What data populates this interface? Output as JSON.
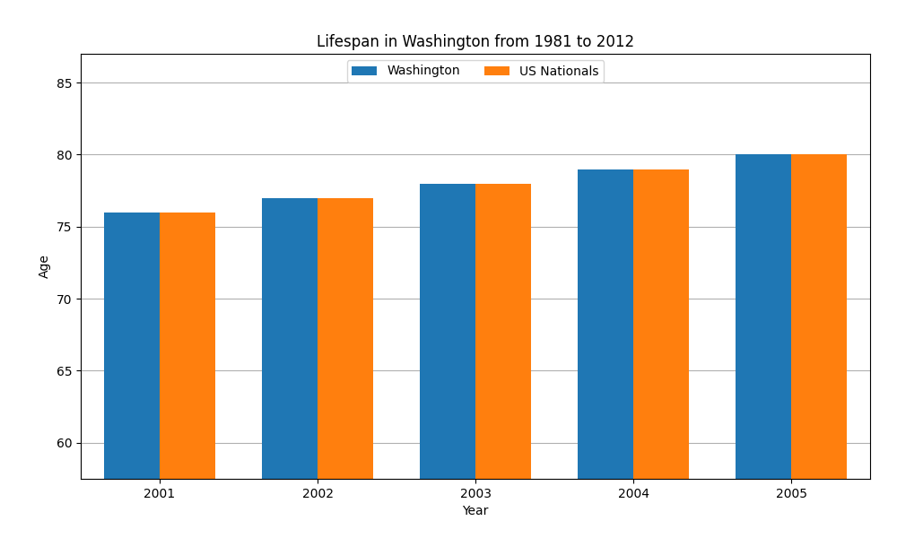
{
  "chart_data": {
    "type": "bar",
    "title": "Lifespan in Washington from 1981 to 2012",
    "xlabel": "Year",
    "ylabel": "Age",
    "categories": [
      "2001",
      "2002",
      "2003",
      "2004",
      "2005"
    ],
    "series": [
      {
        "name": "Washington",
        "values": [
          76,
          77,
          78,
          79,
          80
        ]
      },
      {
        "name": "US Nationals",
        "values": [
          76,
          77,
          78,
          79,
          80
        ]
      }
    ],
    "ylim": [
      57.5,
      87
    ],
    "yticks": [
      60,
      65,
      70,
      75,
      80,
      85
    ],
    "grid": true,
    "legend": "upper center"
  }
}
